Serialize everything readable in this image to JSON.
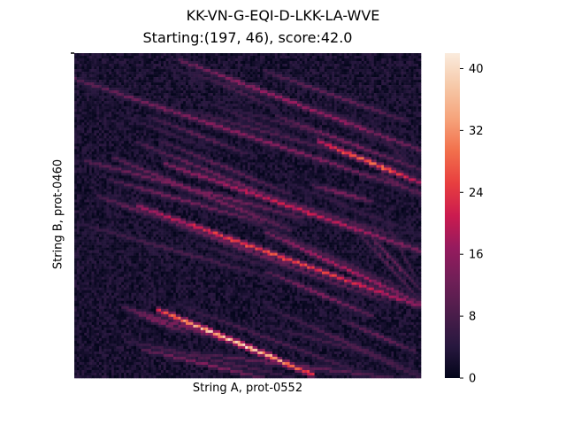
{
  "figure": {
    "suptitle": "KK-VN-G-EQI-D-LKK-LA-WVE",
    "title": "Starting:(197, 46), score:42.0"
  },
  "chart_data": {
    "type": "heatmap",
    "title": "Starting:(197, 46), score:42.0",
    "xlabel": "String A, prot-0552",
    "ylabel": "String B, prot-0460",
    "x_ticks": [],
    "y_ticks": [],
    "grid": false,
    "colormap": "rocket",
    "colorbar": {
      "range": [
        0,
        42
      ],
      "ticks": [
        "0",
        "8",
        "16",
        "24",
        "32",
        "40"
      ]
    },
    "features": [
      {
        "desc": "strongest diagonal band",
        "from": [
          0.24,
          0.79
        ],
        "to": [
          0.69,
          0.99
        ],
        "peak": 42
      },
      {
        "desc": "diagonal band",
        "from": [
          0.18,
          0.47
        ],
        "to": [
          1.0,
          0.78
        ],
        "peak": 28
      },
      {
        "desc": "diagonal band",
        "from": [
          0.26,
          0.34
        ],
        "to": [
          1.0,
          0.61
        ],
        "peak": 22
      },
      {
        "desc": "diagonal band",
        "from": [
          0.7,
          0.27
        ],
        "to": [
          1.0,
          0.4
        ],
        "peak": 30
      },
      {
        "desc": "diagonal band",
        "from": [
          0.0,
          0.08
        ],
        "to": [
          1.0,
          0.43
        ],
        "peak": 16
      },
      {
        "desc": "diagonal band",
        "from": [
          0.3,
          0.02
        ],
        "to": [
          1.0,
          0.3
        ],
        "peak": 18
      },
      {
        "desc": "diagonal band",
        "from": [
          0.55,
          0.55
        ],
        "to": [
          1.0,
          0.77
        ],
        "peak": 20
      }
    ]
  }
}
